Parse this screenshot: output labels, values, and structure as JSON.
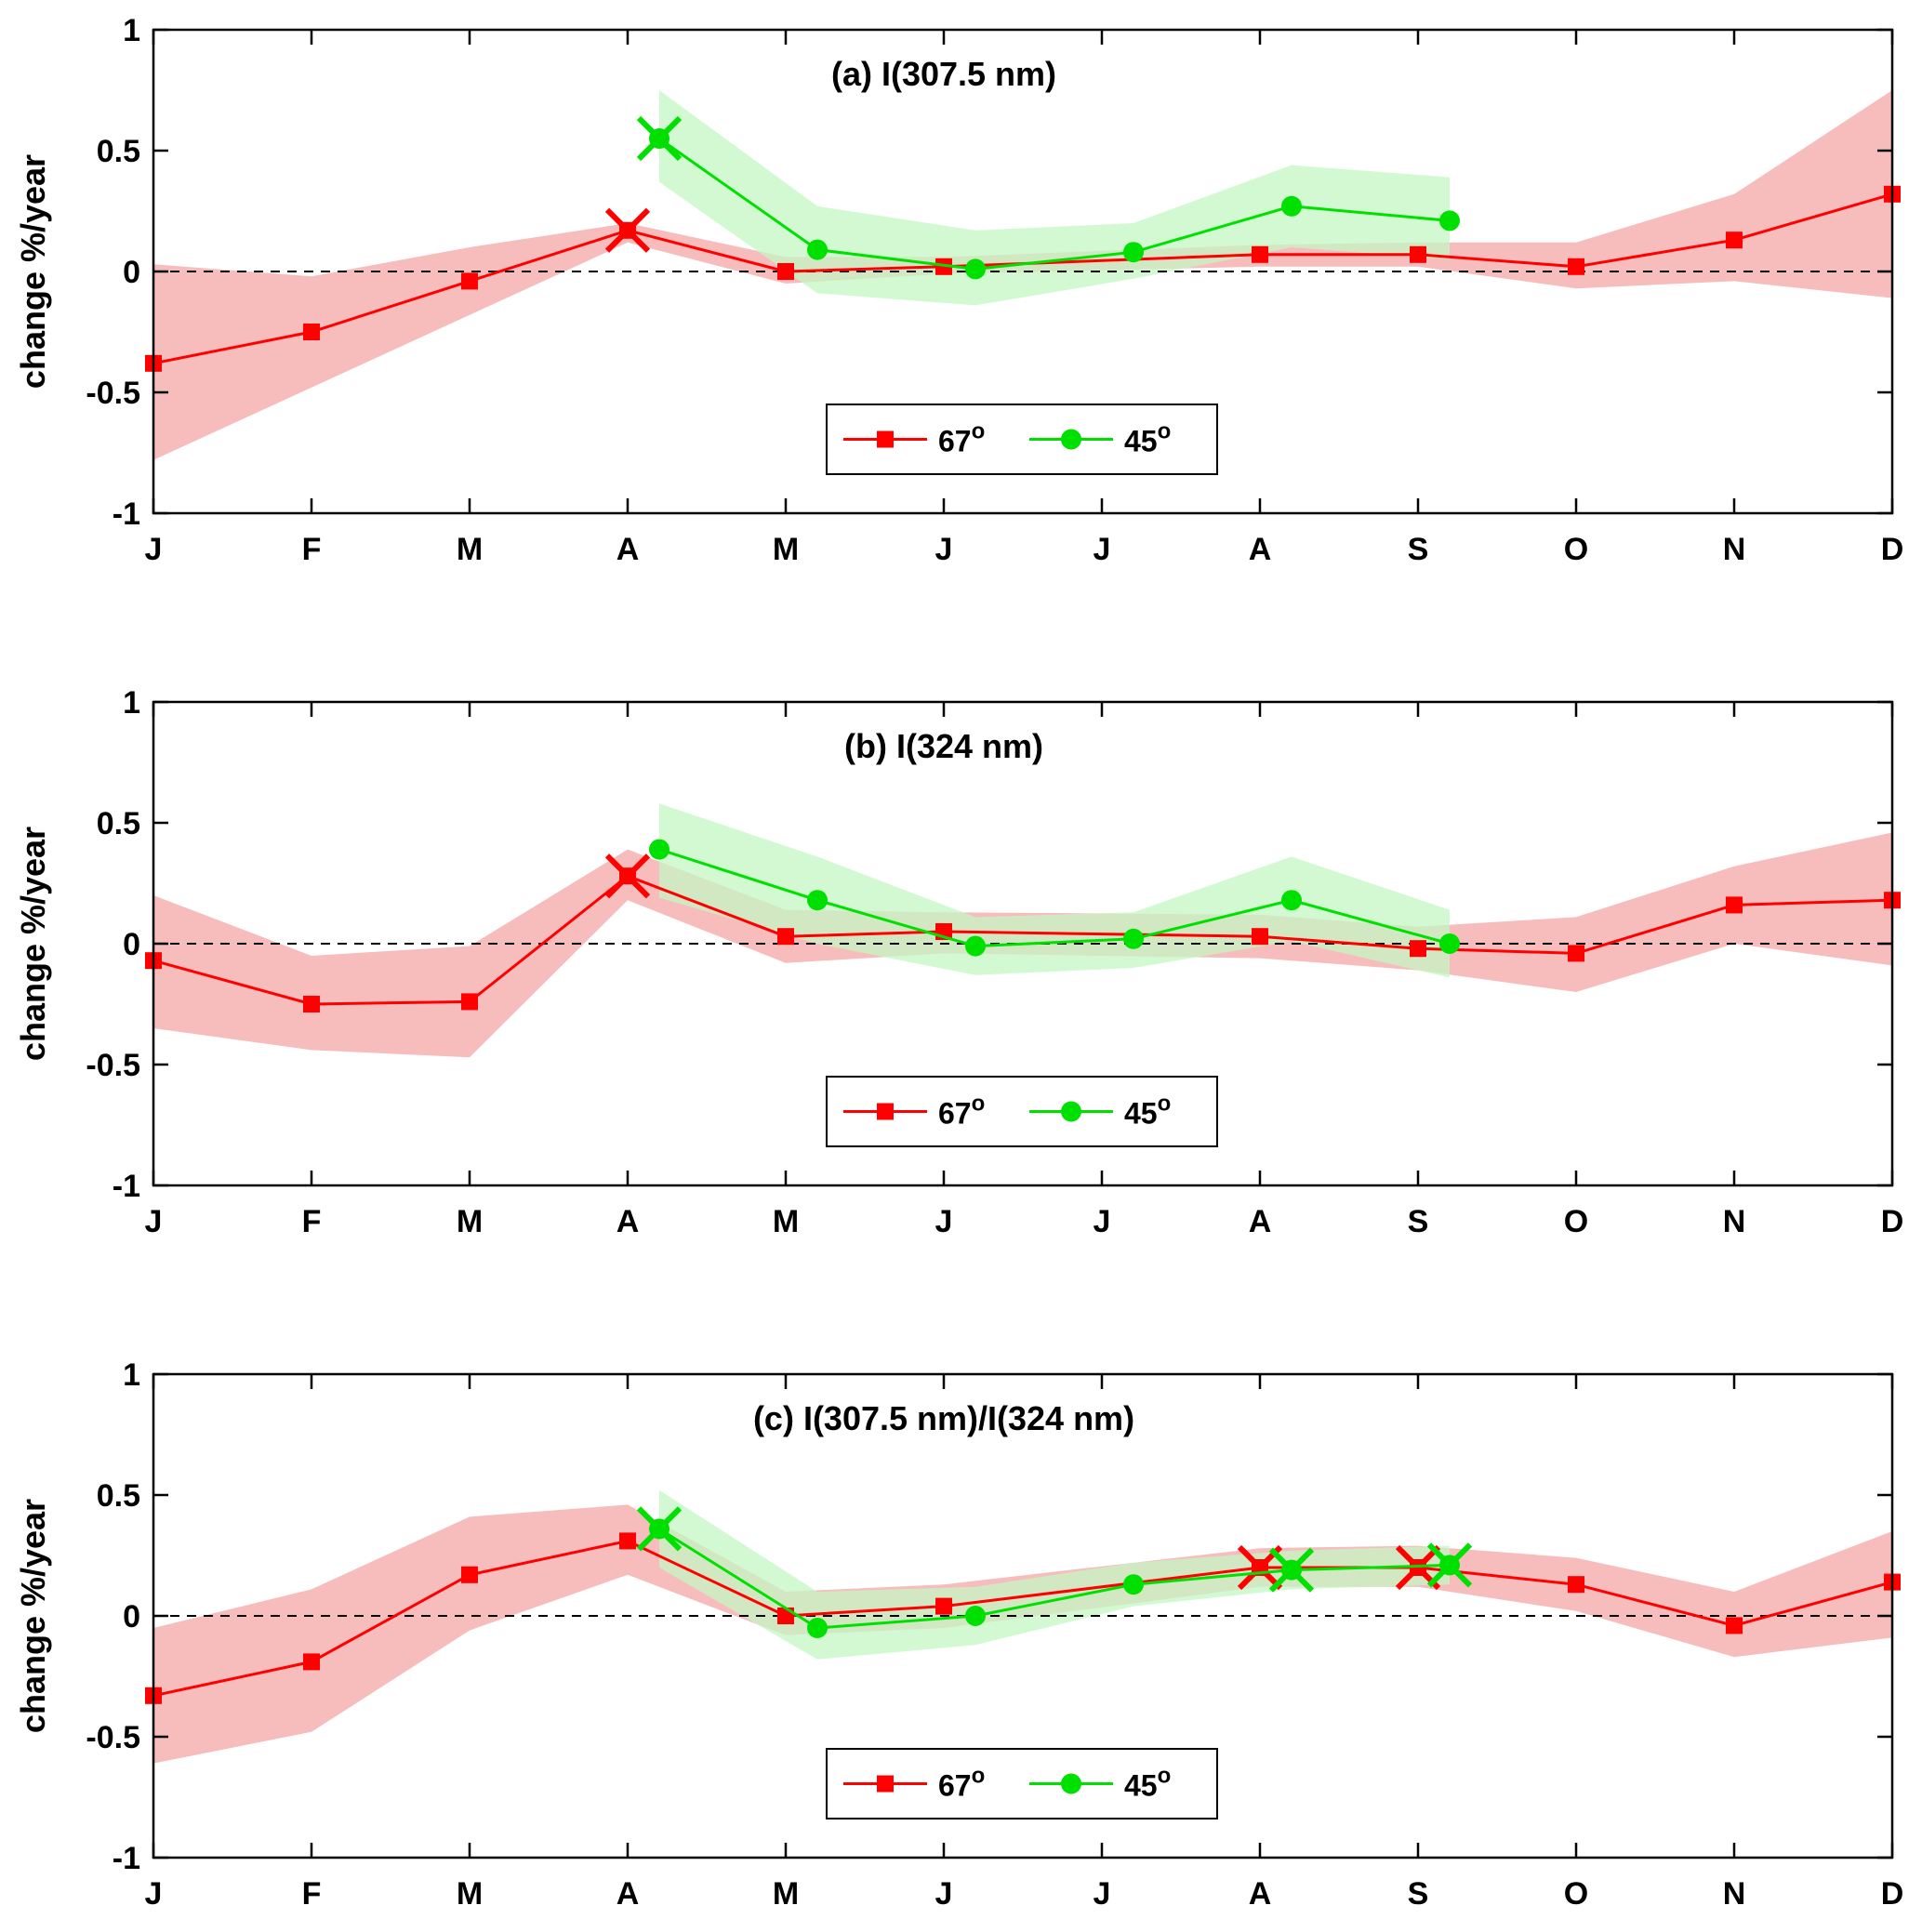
{
  "colors": {
    "red_line": "#ff0000",
    "red_band": "#f7bcbc",
    "green_line": "#00e000",
    "green_band": "#c4f7c4",
    "zero_line": "#000000"
  },
  "chart_data": [
    {
      "type": "line",
      "title": "(a) I(307.5 nm)",
      "ylabel": "change %/year",
      "xlabel": "",
      "ylim": [
        -1,
        1
      ],
      "yticks": [
        1,
        0.5,
        0,
        -0.5,
        -1
      ],
      "ytick_labels": [
        "1",
        "0.5",
        "0",
        "-0.5",
        "-1"
      ],
      "categories": [
        "J",
        "F",
        "M",
        "A",
        "M",
        "J",
        "J",
        "A",
        "S",
        "O",
        "N",
        "D"
      ],
      "legend": [
        "67°",
        "45°"
      ],
      "legend_position": "bottom-center",
      "series": [
        {
          "name": "67°",
          "marker": "square",
          "color": "red",
          "x": [
            1,
            2,
            3,
            4,
            5,
            6,
            8,
            9,
            10,
            11,
            12
          ],
          "values": [
            -0.38,
            -0.25,
            -0.04,
            0.17,
            0.0,
            0.02,
            0.07,
            0.07,
            0.02,
            0.13,
            0.32
          ],
          "band_lower": [
            -0.78,
            -0.48,
            -0.18,
            0.12,
            -0.05,
            -0.01,
            0.02,
            0.02,
            -0.07,
            -0.04,
            -0.11
          ],
          "band_upper": [
            0.03,
            -0.02,
            0.1,
            0.2,
            0.06,
            0.06,
            0.11,
            0.12,
            0.12,
            0.32,
            0.75
          ],
          "significant_x": [
            4
          ]
        },
        {
          "name": "45°",
          "marker": "circle",
          "color": "green",
          "x": [
            4.2,
            5.2,
            6.2,
            7.2,
            8.2,
            9.2
          ],
          "values": [
            0.55,
            0.09,
            0.01,
            0.08,
            0.27,
            0.21
          ],
          "band_lower": [
            0.37,
            -0.09,
            -0.14,
            -0.03,
            0.1,
            0.05
          ],
          "band_upper": [
            0.75,
            0.27,
            0.17,
            0.2,
            0.44,
            0.39
          ],
          "significant_x": [
            4.2
          ]
        }
      ]
    },
    {
      "type": "line",
      "title": "(b) I(324 nm)",
      "ylabel": "change %/year",
      "xlabel": "",
      "ylim": [
        -1,
        1
      ],
      "yticks": [
        1,
        0.5,
        0,
        -0.5,
        -1
      ],
      "ytick_labels": [
        "1",
        "0.5",
        "0",
        "-0.5",
        "-1"
      ],
      "categories": [
        "J",
        "F",
        "M",
        "A",
        "M",
        "J",
        "J",
        "A",
        "S",
        "O",
        "N",
        "D"
      ],
      "legend": [
        "67°",
        "45°"
      ],
      "legend_position": "bottom-center",
      "series": [
        {
          "name": "67°",
          "marker": "square",
          "color": "red",
          "x": [
            1,
            2,
            3,
            4,
            5,
            6,
            8,
            9,
            10,
            11,
            12
          ],
          "values": [
            -0.07,
            -0.25,
            -0.24,
            0.28,
            0.03,
            0.05,
            0.03,
            -0.02,
            -0.04,
            0.16,
            0.18
          ],
          "band_lower": [
            -0.35,
            -0.44,
            -0.47,
            0.18,
            -0.08,
            -0.04,
            -0.06,
            -0.11,
            -0.2,
            0.0,
            -0.09
          ],
          "band_upper": [
            0.2,
            -0.05,
            -0.01,
            0.39,
            0.14,
            0.13,
            0.12,
            0.07,
            0.11,
            0.32,
            0.46
          ],
          "significant_x": [
            4
          ]
        },
        {
          "name": "45°",
          "marker": "circle",
          "color": "green",
          "x": [
            4.2,
            5.2,
            6.2,
            7.2,
            8.2,
            9.2
          ],
          "values": [
            0.39,
            0.18,
            -0.01,
            0.02,
            0.18,
            0.0
          ],
          "band_lower": [
            0.19,
            0.0,
            -0.13,
            -0.1,
            0.01,
            -0.14
          ],
          "band_upper": [
            0.58,
            0.36,
            0.11,
            0.13,
            0.36,
            0.14
          ],
          "significant_x": []
        }
      ]
    },
    {
      "type": "line",
      "title": "(c) I(307.5 nm)/I(324 nm)",
      "ylabel": "change %/year",
      "xlabel": "",
      "ylim": [
        -1,
        1
      ],
      "yticks": [
        1,
        0.5,
        0,
        -0.5,
        -1
      ],
      "ytick_labels": [
        "1",
        "0.5",
        "0",
        "-0.5",
        "-1"
      ],
      "categories": [
        "J",
        "F",
        "M",
        "A",
        "M",
        "J",
        "J",
        "A",
        "S",
        "O",
        "N",
        "D"
      ],
      "legend": [
        "67°",
        "45°"
      ],
      "legend_position": "bottom-center",
      "series": [
        {
          "name": "67°",
          "marker": "square",
          "color": "red",
          "x": [
            1,
            2,
            3,
            4,
            5,
            6,
            8,
            9,
            10,
            11,
            12
          ],
          "values": [
            -0.33,
            -0.19,
            0.17,
            0.31,
            0.0,
            0.04,
            0.2,
            0.2,
            0.13,
            -0.04,
            0.14
          ],
          "band_lower": [
            -0.61,
            -0.48,
            -0.06,
            0.17,
            -0.08,
            -0.05,
            0.12,
            0.12,
            0.02,
            -0.17,
            -0.09
          ],
          "band_upper": [
            -0.05,
            0.11,
            0.41,
            0.46,
            0.1,
            0.13,
            0.28,
            0.29,
            0.24,
            0.1,
            0.35
          ],
          "significant_x": [
            8,
            9
          ]
        },
        {
          "name": "45°",
          "marker": "circle",
          "color": "green",
          "x": [
            4.2,
            5.2,
            6.2,
            7.2,
            8.2,
            9.2
          ],
          "values": [
            0.36,
            -0.05,
            0.0,
            0.13,
            0.19,
            0.21
          ],
          "band_lower": [
            0.2,
            -0.18,
            -0.12,
            0.04,
            0.11,
            0.13
          ],
          "band_upper": [
            0.52,
            0.1,
            0.12,
            0.22,
            0.27,
            0.29
          ],
          "significant_x": [
            4.2,
            8.2,
            9.2
          ]
        }
      ]
    }
  ]
}
